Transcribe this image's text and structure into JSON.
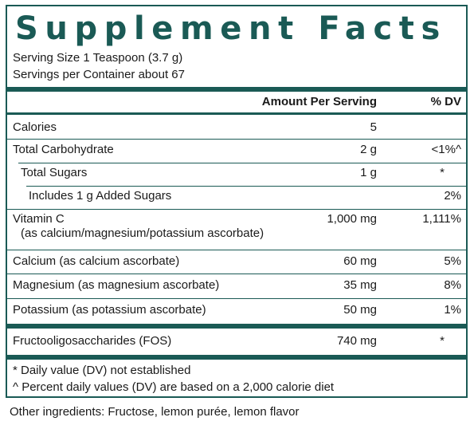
{
  "title": "Supplement Facts",
  "serving_size": "Serving Size 1 Teaspoon (3.7 g)",
  "servings_per_container": "Servings per Container about 67",
  "header": {
    "amount": "Amount Per Serving",
    "dv": "% DV"
  },
  "rows": [
    {
      "name": "Calories",
      "amount": "5",
      "dv": ""
    },
    {
      "name": "Total Carbohydrate",
      "amount": "2 g",
      "dv": "<1%^"
    },
    {
      "name": "Total Sugars",
      "amount": "1 g",
      "dv": "*"
    },
    {
      "name": "Includes 1 g Added Sugars",
      "amount": "",
      "dv": "2%"
    },
    {
      "name": "Vitamin C",
      "sub": "(as calcium/magnesium/potassium ascorbate)",
      "amount": "1,000 mg",
      "dv": "1,111%"
    },
    {
      "name": "Calcium (as calcium ascorbate)",
      "amount": "60 mg",
      "dv": "5%"
    },
    {
      "name": "Magnesium (as magnesium ascorbate)",
      "amount": "35 mg",
      "dv": "8%"
    },
    {
      "name": "Potassium (as potassium ascorbate)",
      "amount": "50 mg",
      "dv": "1%"
    },
    {
      "name": "Fructooligosaccharides (FOS)",
      "amount": "740 mg",
      "dv": "*"
    }
  ],
  "footnotes": [
    "* Daily value (DV) not established",
    "^ Percent daily values (DV) are based on a 2,000 calorie diet"
  ],
  "other_ingredients": "Other ingredients: Fructose, lemon purée, lemon flavor",
  "colors": {
    "accent": "#1a5a55",
    "text": "#1a1a1a",
    "background": "#ffffff"
  }
}
